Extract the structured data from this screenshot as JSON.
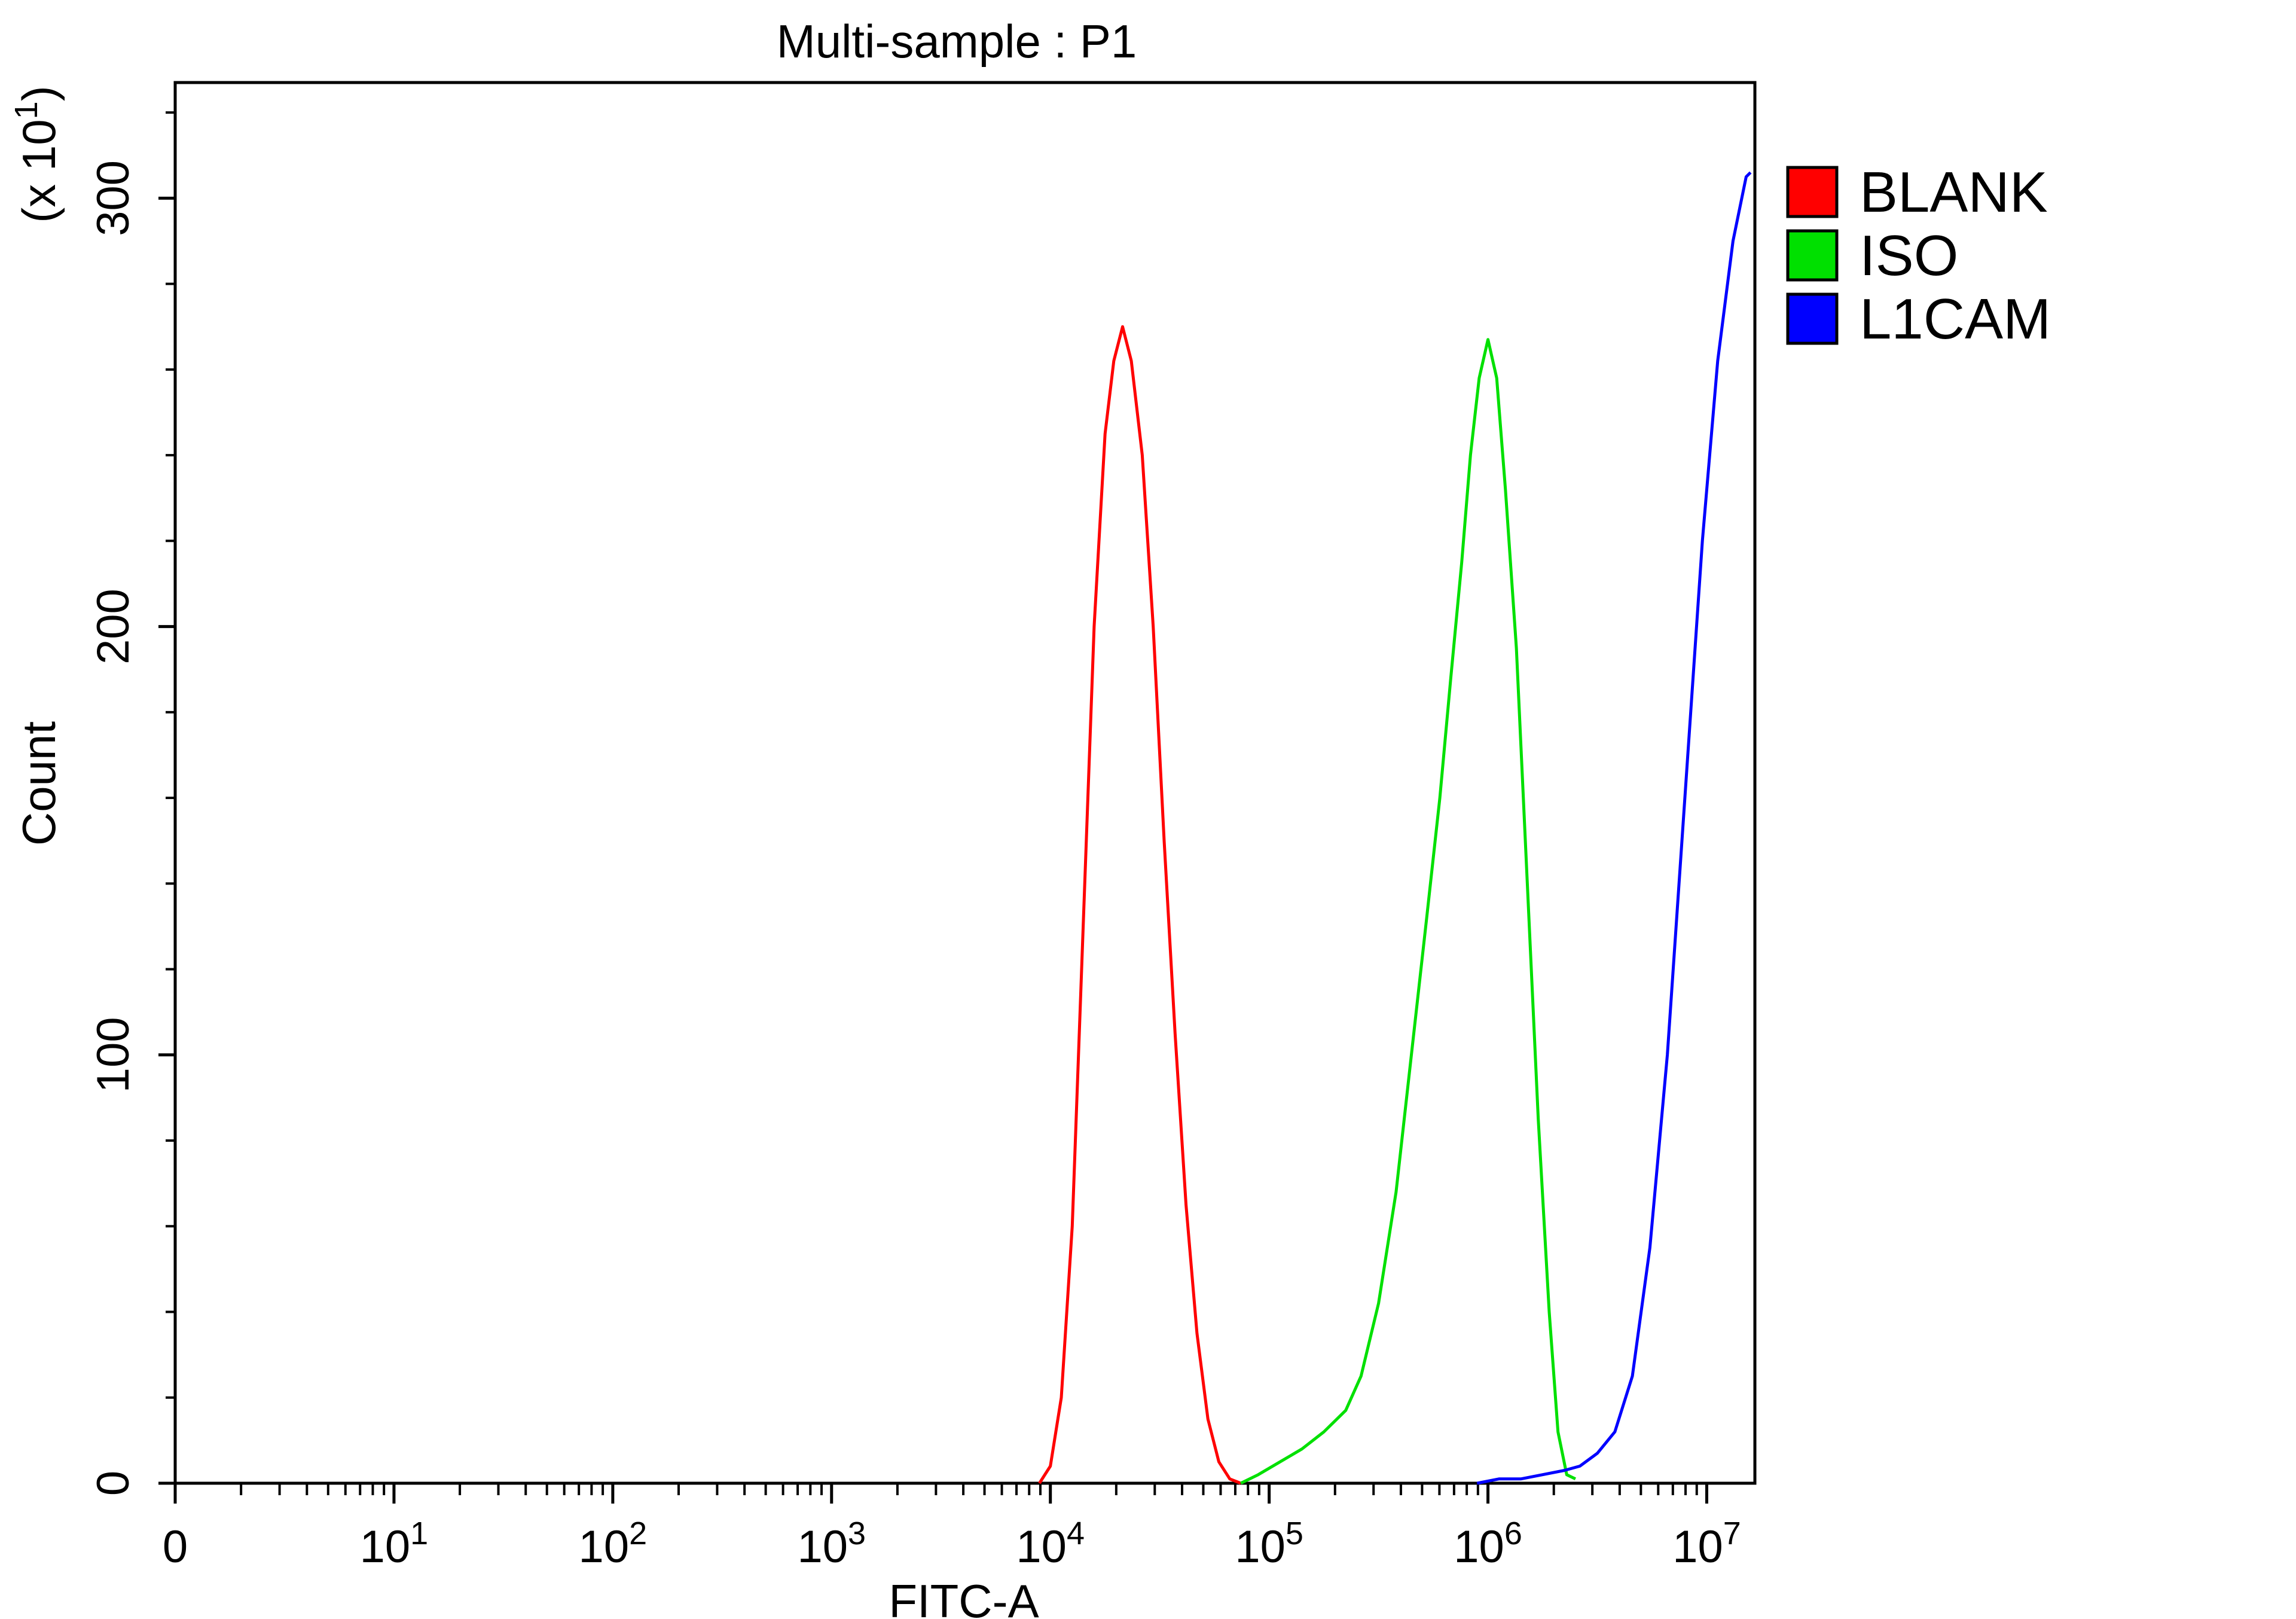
{
  "chart_data": {
    "type": "line",
    "title": "Multi-sample : P1",
    "xlabel": "FITC-A",
    "ylabel": "Count",
    "yscale_label": "(x 10",
    "yscale_exp": "1",
    "yscale_close": ")",
    "x_scale": "biexponential (0 then log decades)",
    "y_scale": "linear",
    "xlim_decades": [
      0,
      7.22
    ],
    "ylim": [
      0,
      327
    ],
    "x_ticks": [
      {
        "base": "0",
        "exp": "",
        "decade": 0
      },
      {
        "base": "10",
        "exp": "1",
        "decade": 1
      },
      {
        "base": "10",
        "exp": "2",
        "decade": 2
      },
      {
        "base": "10",
        "exp": "3",
        "decade": 3
      },
      {
        "base": "10",
        "exp": "4",
        "decade": 4
      },
      {
        "base": "10",
        "exp": "5",
        "decade": 5
      },
      {
        "base": "10",
        "exp": "6",
        "decade": 6
      },
      {
        "base": "10",
        "exp": "7",
        "decade": 7
      }
    ],
    "y_ticks": [
      0,
      100,
      200,
      300
    ],
    "grid": false,
    "legend_position": "right-top",
    "series": [
      {
        "name": "BLANK",
        "color": "#ff0000",
        "points": [
          [
            3.95,
            0
          ],
          [
            4.0,
            4
          ],
          [
            4.05,
            20
          ],
          [
            4.1,
            60
          ],
          [
            4.15,
            130
          ],
          [
            4.2,
            200
          ],
          [
            4.25,
            245
          ],
          [
            4.29,
            262
          ],
          [
            4.33,
            270
          ],
          [
            4.37,
            262
          ],
          [
            4.42,
            240
          ],
          [
            4.47,
            200
          ],
          [
            4.52,
            150
          ],
          [
            4.57,
            105
          ],
          [
            4.62,
            65
          ],
          [
            4.67,
            35
          ],
          [
            4.72,
            15
          ],
          [
            4.77,
            5
          ],
          [
            4.82,
            1
          ],
          [
            4.87,
            0
          ]
        ]
      },
      {
        "name": "ISO",
        "color": "#00e000",
        "points": [
          [
            4.87,
            0
          ],
          [
            4.95,
            2
          ],
          [
            5.05,
            5
          ],
          [
            5.15,
            8
          ],
          [
            5.25,
            12
          ],
          [
            5.35,
            17
          ],
          [
            5.42,
            25
          ],
          [
            5.5,
            42
          ],
          [
            5.58,
            68
          ],
          [
            5.65,
            100
          ],
          [
            5.72,
            132
          ],
          [
            5.78,
            160
          ],
          [
            5.83,
            188
          ],
          [
            5.88,
            215
          ],
          [
            5.92,
            240
          ],
          [
            5.96,
            258
          ],
          [
            6.0,
            267
          ],
          [
            6.04,
            258
          ],
          [
            6.08,
            232
          ],
          [
            6.13,
            195
          ],
          [
            6.18,
            140
          ],
          [
            6.23,
            85
          ],
          [
            6.28,
            40
          ],
          [
            6.32,
            12
          ],
          [
            6.36,
            2
          ],
          [
            6.4,
            1
          ]
        ]
      },
      {
        "name": "L1CAM",
        "color": "#0000ff",
        "points": [
          [
            5.95,
            0
          ],
          [
            6.05,
            1
          ],
          [
            6.15,
            1
          ],
          [
            6.25,
            2
          ],
          [
            6.35,
            3
          ],
          [
            6.42,
            4
          ],
          [
            6.5,
            7
          ],
          [
            6.58,
            12
          ],
          [
            6.66,
            25
          ],
          [
            6.74,
            55
          ],
          [
            6.82,
            100
          ],
          [
            6.9,
            160
          ],
          [
            6.98,
            220
          ],
          [
            7.05,
            262
          ],
          [
            7.12,
            290
          ],
          [
            7.18,
            305
          ],
          [
            7.2,
            306
          ]
        ]
      }
    ]
  },
  "legend": [
    {
      "label": "BLANK",
      "color": "#ff0000"
    },
    {
      "label": "ISO",
      "color": "#00e000"
    },
    {
      "label": "L1CAM",
      "color": "#0000ff"
    }
  ]
}
